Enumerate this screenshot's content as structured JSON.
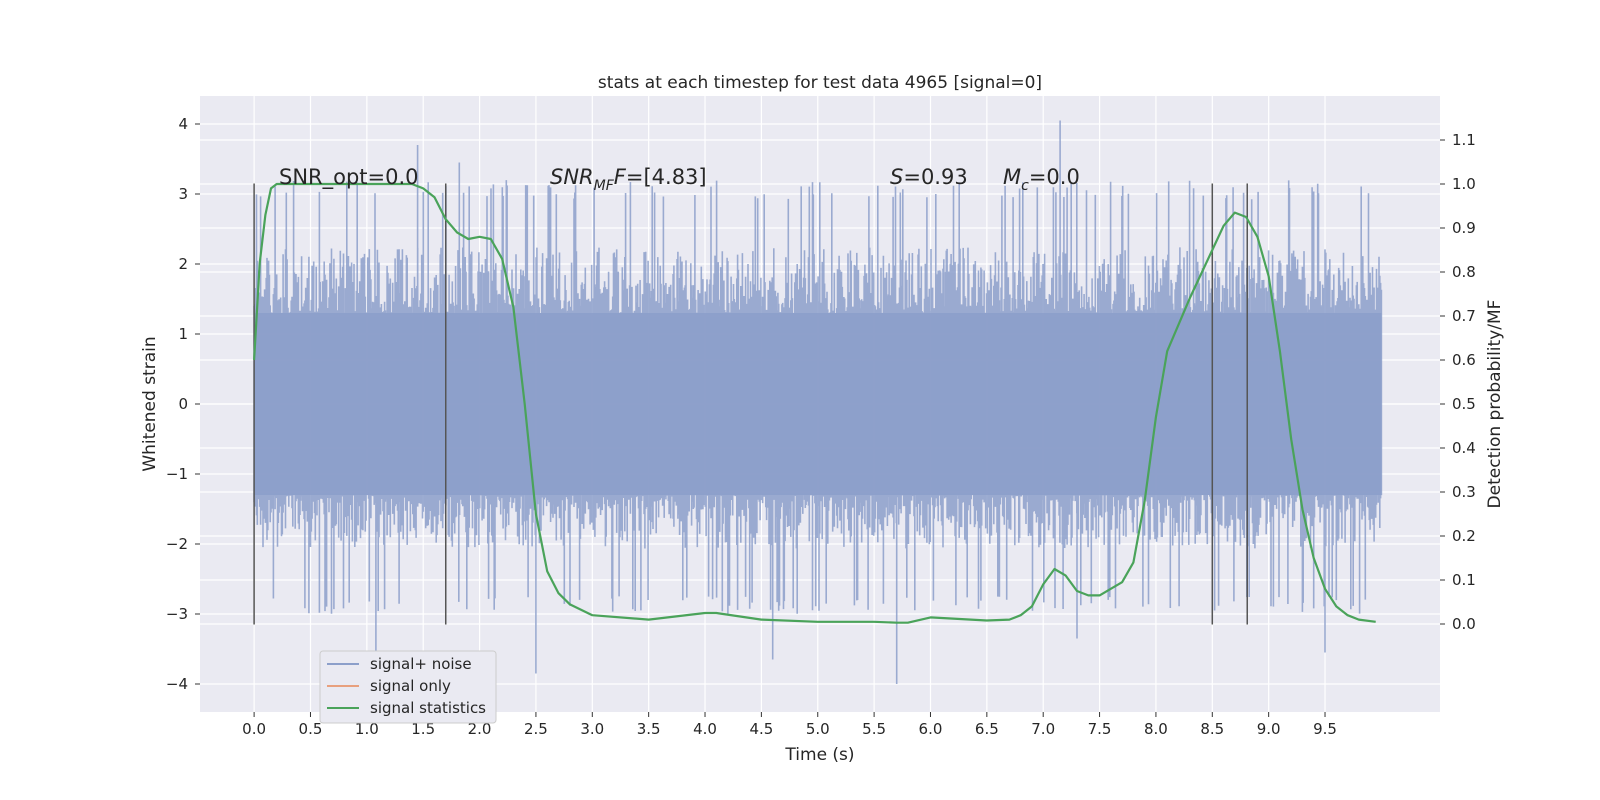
{
  "chart_data": {
    "type": "line",
    "title": "stats at each timestep for test data 4965 [signal=0]",
    "xlabel": "Time (s)",
    "ylabel": "Whitened strain",
    "y2label": "Detection probability/MF",
    "xlim": [
      -0.48,
      10.52
    ],
    "ylim": [
      -4.4,
      4.4
    ],
    "y2lim": [
      -0.2,
      1.2
    ],
    "x_ticks": [
      "0.0",
      "0.5",
      "1.0",
      "1.5",
      "2.0",
      "2.5",
      "3.0",
      "3.5",
      "4.0",
      "4.5",
      "5.0",
      "5.5",
      "6.0",
      "6.5",
      "7.0",
      "7.5",
      "8.0",
      "8.5",
      "9.0",
      "9.5"
    ],
    "y_ticks": [
      "−4",
      "−3",
      "−2",
      "−1",
      "0",
      "1",
      "2",
      "3",
      "4"
    ],
    "y2_ticks": [
      "0.0",
      "0.1",
      "0.2",
      "0.3",
      "0.4",
      "0.5",
      "0.6",
      "0.7",
      "0.8",
      "0.9",
      "1.0",
      "1.1"
    ],
    "grid": true,
    "legend_position": "lower-left",
    "colors": {
      "noise": "#8c9fca",
      "signal_only": "#e8a07e",
      "stats": "#4aa35a",
      "vlines": "#555555",
      "plot_bg": "#eaeaf2",
      "grid": "#ffffff"
    },
    "noise_envelope": {
      "x": [
        0.0,
        10.0
      ],
      "core_band": [
        -1.3,
        1.3
      ],
      "typical_band": [
        -2.2,
        2.4
      ],
      "extremes": [
        {
          "x": 1.08,
          "y": -3.6
        },
        {
          "x": 1.45,
          "y": 3.7
        },
        {
          "x": 1.82,
          "y": 3.45
        },
        {
          "x": 2.5,
          "y": -3.85
        },
        {
          "x": 4.6,
          "y": -3.65
        },
        {
          "x": 5.7,
          "y": -4.0
        },
        {
          "x": 7.15,
          "y": 4.05
        },
        {
          "x": 7.3,
          "y": -3.35
        },
        {
          "x": 9.5,
          "y": -3.55
        }
      ]
    },
    "vertical_lines_x": [
      0.0,
      1.7,
      8.5,
      8.81
    ],
    "vertical_lines_yrange": [
      -3.15,
      3.15
    ],
    "series": [
      {
        "name": "signal statistics",
        "x": [
          0.0,
          0.05,
          0.1,
          0.15,
          0.2,
          0.3,
          0.5,
          1.0,
          1.4,
          1.5,
          1.6,
          1.7,
          1.8,
          1.9,
          2.0,
          2.1,
          2.2,
          2.3,
          2.4,
          2.5,
          2.6,
          2.7,
          2.8,
          3.0,
          3.5,
          4.0,
          4.1,
          4.5,
          5.0,
          5.5,
          5.7,
          5.8,
          6.0,
          6.5,
          6.7,
          6.8,
          6.9,
          7.0,
          7.1,
          7.2,
          7.3,
          7.4,
          7.5,
          7.6,
          7.7,
          7.8,
          7.9,
          8.0,
          8.1,
          8.3,
          8.5,
          8.6,
          8.7,
          8.8,
          8.9,
          9.0,
          9.1,
          9.2,
          9.3,
          9.4,
          9.5,
          9.6,
          9.7,
          9.8,
          9.95
        ],
        "y": [
          0.6,
          0.82,
          0.93,
          0.99,
          1.0,
          1.0,
          1.0,
          1.0,
          1.0,
          0.99,
          0.97,
          0.92,
          0.89,
          0.875,
          0.88,
          0.875,
          0.83,
          0.72,
          0.5,
          0.25,
          0.12,
          0.07,
          0.045,
          0.02,
          0.01,
          0.025,
          0.025,
          0.01,
          0.005,
          0.005,
          0.003,
          0.003,
          0.015,
          0.008,
          0.01,
          0.02,
          0.04,
          0.09,
          0.125,
          0.11,
          0.075,
          0.065,
          0.065,
          0.08,
          0.095,
          0.14,
          0.28,
          0.47,
          0.62,
          0.74,
          0.85,
          0.905,
          0.935,
          0.925,
          0.88,
          0.79,
          0.62,
          0.42,
          0.26,
          0.15,
          0.08,
          0.04,
          0.02,
          0.01,
          0.005
        ]
      }
    ],
    "legend": [
      {
        "name": "signal+ noise",
        "color": "#8c9fca"
      },
      {
        "name": "signal only",
        "color": "#e8a07e"
      },
      {
        "name": "signal statistics",
        "color": "#4aa35a"
      }
    ],
    "annotations": {
      "snr_opt": "SNR_opt=0.0",
      "snr_mf_prefix": "SNR",
      "snr_mf_sub": "MF",
      "snr_mf_suffix": "=[4.83]",
      "s_prefix": "S",
      "s_suffix": "=0.93",
      "mc_prefix": "M",
      "mc_sub": "c",
      "mc_suffix": "=0.0"
    }
  }
}
